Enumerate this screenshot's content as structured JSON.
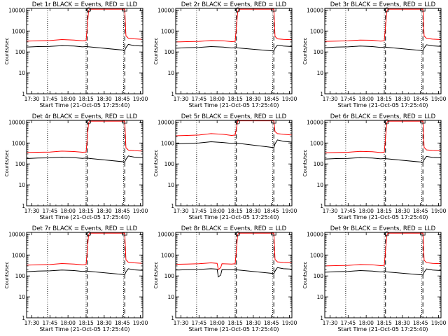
{
  "colors": {
    "events": "#000000",
    "lld": "#ff0000",
    "axes": "#000000"
  },
  "chart_data": [
    {
      "type": "line",
      "title": "Det 1r BLACK = Events, RED = LLD",
      "xlabel": "Start Time (21-Oct-05 17:25:40)",
      "ylabel": "Counts/sec",
      "ylog": true,
      "ylim": [
        1,
        12000
      ],
      "xlim": [
        "17:25:40",
        "19:02:00"
      ],
      "xticks": [
        "17:30",
        "17:45",
        "18:00",
        "18:15",
        "18:30",
        "18:45",
        "19:00"
      ],
      "yticks": [
        "1",
        "10",
        "100",
        "1000",
        "10000"
      ],
      "dotted_lines": [
        "17:43",
        "18:15",
        "18:46"
      ],
      "dashed_lines": [
        "18:16",
        "18:47"
      ],
      "series": [
        {
          "color": "#ff0000",
          "x": [
            "17:25:40",
            "17:35",
            "17:45",
            "17:55",
            "18:05",
            "18:12",
            "18:15",
            "18:17",
            "18:18",
            "18:47",
            "18:48",
            "18:50",
            "18:55",
            "19:02"
          ],
          "y": [
            330,
            340,
            350,
            390,
            370,
            340,
            350,
            9000,
            11000,
            11000,
            600,
            450,
            420,
            400
          ]
        },
        {
          "color": "#000000",
          "x": [
            "17:25:40",
            "17:35",
            "17:45",
            "17:55",
            "18:05",
            "18:12",
            "18:15",
            "18:47",
            "18:48",
            "18:50",
            "18:55",
            "19:02"
          ],
          "y": [
            170,
            180,
            185,
            200,
            190,
            175,
            180,
            120,
            160,
            230,
            200,
            190
          ]
        }
      ]
    },
    {
      "type": "line",
      "title": "Det 2r BLACK = Events, RED = LLD",
      "xlabel": "Start Time (21-Oct-05 17:25:40)",
      "ylabel": "Counts/sec",
      "ylog": true,
      "ylim": [
        1,
        12000
      ],
      "xlim": [
        "17:25:40",
        "19:02:00"
      ],
      "xticks": [
        "17:30",
        "17:45",
        "18:00",
        "18:15",
        "18:30",
        "18:45",
        "19:00"
      ],
      "yticks": [
        "1",
        "10",
        "100",
        "1000",
        "10000"
      ],
      "dotted_lines": [
        "17:43",
        "18:15",
        "18:46"
      ],
      "dashed_lines": [
        "18:16",
        "18:47"
      ],
      "series": [
        {
          "color": "#ff0000",
          "x": [
            "17:25:40",
            "17:35",
            "17:45",
            "17:55",
            "18:05",
            "18:12",
            "18:15",
            "18:17",
            "18:18",
            "18:47",
            "18:48",
            "18:50",
            "18:55",
            "19:02"
          ],
          "y": [
            300,
            310,
            320,
            350,
            340,
            310,
            320,
            8000,
            11000,
            11000,
            550,
            420,
            400,
            380
          ]
        },
        {
          "color": "#000000",
          "x": [
            "17:25:40",
            "17:35",
            "17:45",
            "17:55",
            "18:05",
            "18:12",
            "18:15",
            "18:47",
            "18:48",
            "18:50",
            "18:55",
            "19:02"
          ],
          "y": [
            150,
            160,
            165,
            180,
            170,
            155,
            160,
            110,
            150,
            210,
            190,
            180
          ]
        }
      ]
    },
    {
      "type": "line",
      "title": "Det 3r BLACK = Events, RED = LLD",
      "xlabel": "Start Time (21-Oct-05 17:25:40)",
      "ylabel": "Counts/sec",
      "ylog": true,
      "ylim": [
        1,
        12000
      ],
      "xlim": [
        "17:25:40",
        "19:02:00"
      ],
      "xticks": [
        "17:30",
        "17:45",
        "18:00",
        "18:15",
        "18:30",
        "18:45",
        "19:00"
      ],
      "yticks": [
        "1",
        "10",
        "100",
        "1000",
        "10000"
      ],
      "dotted_lines": [
        "17:43",
        "18:15",
        "18:46"
      ],
      "dashed_lines": [
        "18:16",
        "18:47"
      ],
      "series": [
        {
          "color": "#ff0000",
          "x": [
            "17:25:40",
            "17:35",
            "17:45",
            "17:55",
            "18:05",
            "18:12",
            "18:15",
            "18:17",
            "18:18",
            "18:47",
            "18:48",
            "18:50",
            "18:55",
            "19:02"
          ],
          "y": [
            320,
            330,
            340,
            370,
            360,
            330,
            340,
            8500,
            11000,
            11000,
            580,
            440,
            410,
            390
          ]
        },
        {
          "color": "#000000",
          "x": [
            "17:25:40",
            "17:35",
            "17:45",
            "17:55",
            "18:05",
            "18:12",
            "18:15",
            "18:47",
            "18:48",
            "18:50",
            "18:55",
            "19:02"
          ],
          "y": [
            160,
            170,
            175,
            190,
            180,
            165,
            170,
            115,
            155,
            220,
            195,
            185
          ]
        }
      ]
    },
    {
      "type": "line",
      "title": "Det 4r BLACK = Events, RED = LLD",
      "xlabel": "Start Time (21-Oct-05 17:25:40)",
      "ylabel": "Counts/sec",
      "ylog": true,
      "ylim": [
        1,
        12000
      ],
      "xlim": [
        "17:25:40",
        "19:02:00"
      ],
      "xticks": [
        "17:30",
        "17:45",
        "18:00",
        "18:15",
        "18:30",
        "18:45",
        "19:00"
      ],
      "yticks": [
        "1",
        "10",
        "100",
        "1000",
        "10000"
      ],
      "dotted_lines": [
        "17:43",
        "18:15",
        "18:46"
      ],
      "dashed_lines": [
        "18:16",
        "18:47"
      ],
      "series": [
        {
          "color": "#ff0000",
          "x": [
            "17:25:40",
            "17:35",
            "17:45",
            "17:55",
            "18:05",
            "18:12",
            "18:15",
            "18:17",
            "18:18",
            "18:47",
            "18:48",
            "18:50",
            "18:55",
            "19:02"
          ],
          "y": [
            350,
            360,
            370,
            410,
            390,
            360,
            370,
            9000,
            11000,
            11000,
            600,
            460,
            430,
            410
          ]
        },
        {
          "color": "#000000",
          "x": [
            "17:25:40",
            "17:35",
            "17:45",
            "17:55",
            "18:05",
            "18:12",
            "18:15",
            "18:47",
            "18:48",
            "18:50",
            "18:55",
            "19:02"
          ],
          "y": [
            180,
            190,
            195,
            210,
            200,
            185,
            190,
            125,
            165,
            240,
            210,
            200
          ]
        }
      ]
    },
    {
      "type": "line",
      "title": "Det 5r BLACK = Events, RED = LLD",
      "xlabel": "Start Time (21-Oct-05 17:25:40)",
      "ylabel": "Counts/sec",
      "ylog": true,
      "ylim": [
        1,
        12000
      ],
      "xlim": [
        "17:25:40",
        "19:02:00"
      ],
      "xticks": [
        "17:30",
        "17:45",
        "18:00",
        "18:15",
        "18:30",
        "18:45",
        "19:00"
      ],
      "yticks": [
        "1",
        "10",
        "100",
        "1000",
        "10000"
      ],
      "dotted_lines": [
        "17:43",
        "18:15",
        "18:46"
      ],
      "dashed_lines": [
        "18:16",
        "18:47"
      ],
      "series": [
        {
          "color": "#ff0000",
          "x": [
            "17:25:40",
            "17:35",
            "17:45",
            "17:55",
            "18:05",
            "18:12",
            "18:15",
            "18:17",
            "18:18",
            "18:47",
            "18:48",
            "18:50",
            "18:55",
            "19:02"
          ],
          "y": [
            2200,
            2300,
            2400,
            2800,
            2600,
            2300,
            2400,
            11000,
            11500,
            11500,
            3500,
            2800,
            2600,
            2400
          ]
        },
        {
          "color": "#000000",
          "x": [
            "17:25:40",
            "17:35",
            "17:45",
            "17:55",
            "18:05",
            "18:12",
            "18:15",
            "18:47",
            "18:48",
            "18:50",
            "18:55",
            "19:02"
          ],
          "y": [
            900,
            950,
            1000,
            1150,
            1050,
            950,
            1000,
            600,
            900,
            1400,
            1200,
            1100
          ]
        }
      ]
    },
    {
      "type": "line",
      "title": "Det 6r BLACK = Events, RED = LLD",
      "xlabel": "Start Time (21-Oct-05 17:25:40)",
      "ylabel": "Counts/sec",
      "ylog": true,
      "ylim": [
        1,
        12000
      ],
      "xlim": [
        "17:25:40",
        "19:02:00"
      ],
      "xticks": [
        "17:30",
        "17:45",
        "18:00",
        "18:15",
        "18:30",
        "18:45",
        "19:00"
      ],
      "yticks": [
        "1",
        "10",
        "100",
        "1000",
        "10000"
      ],
      "dotted_lines": [
        "17:43",
        "18:15",
        "18:46"
      ],
      "dashed_lines": [
        "18:16",
        "18:47"
      ],
      "series": [
        {
          "color": "#ff0000",
          "x": [
            "17:25:40",
            "17:35",
            "17:45",
            "17:55",
            "18:05",
            "18:12",
            "18:15",
            "18:17",
            "18:18",
            "18:47",
            "18:48",
            "18:50",
            "18:55",
            "19:02"
          ],
          "y": [
            340,
            350,
            360,
            400,
            380,
            350,
            360,
            9000,
            11000,
            11000,
            620,
            470,
            440,
            420
          ]
        },
        {
          "color": "#000000",
          "x": [
            "17:25:40",
            "17:35",
            "17:45",
            "17:55",
            "18:05",
            "18:12",
            "18:15",
            "18:47",
            "18:48",
            "18:50",
            "18:55",
            "19:02"
          ],
          "y": [
            170,
            180,
            185,
            200,
            190,
            175,
            180,
            120,
            160,
            230,
            205,
            195
          ]
        }
      ]
    },
    {
      "type": "line",
      "title": "Det 7r BLACK = Events, RED = LLD",
      "xlabel": "Start Time (21-Oct-05 17:25:40)",
      "ylabel": "Counts/sec",
      "ylog": true,
      "ylim": [
        1,
        12000
      ],
      "xlim": [
        "17:25:40",
        "19:02:00"
      ],
      "xticks": [
        "17:30",
        "17:45",
        "18:00",
        "18:15",
        "18:30",
        "18:45",
        "19:00"
      ],
      "yticks": [
        "1",
        "10",
        "100",
        "1000",
        "10000"
      ],
      "dotted_lines": [
        "17:43",
        "18:15",
        "18:46"
      ],
      "dashed_lines": [
        "18:16",
        "18:47"
      ],
      "series": [
        {
          "color": "#ff0000",
          "x": [
            "17:25:40",
            "17:35",
            "17:45",
            "17:55",
            "18:05",
            "18:12",
            "18:15",
            "18:17",
            "18:18",
            "18:47",
            "18:48",
            "18:50",
            "18:55",
            "19:02"
          ],
          "y": [
            330,
            340,
            350,
            390,
            370,
            340,
            350,
            9000,
            11000,
            11000,
            600,
            450,
            420,
            400
          ]
        },
        {
          "color": "#000000",
          "x": [
            "17:25:40",
            "17:35",
            "17:45",
            "17:55",
            "18:05",
            "18:12",
            "18:15",
            "18:47",
            "18:48",
            "18:50",
            "18:55",
            "19:02"
          ],
          "y": [
            160,
            170,
            175,
            190,
            180,
            165,
            170,
            115,
            155,
            220,
            195,
            185
          ]
        }
      ]
    },
    {
      "type": "line",
      "title": "Det 8r BLACK = Events, RED = LLD",
      "xlabel": "Start Time (21-Oct-05 17:25:40)",
      "ylabel": "Counts/sec",
      "ylog": true,
      "ylim": [
        1,
        12000
      ],
      "xlim": [
        "17:25:40",
        "19:02:00"
      ],
      "xticks": [
        "17:30",
        "17:45",
        "18:00",
        "18:15",
        "18:30",
        "18:45",
        "19:00"
      ],
      "yticks": [
        "1",
        "10",
        "100",
        "1000",
        "10000"
      ],
      "dotted_lines": [
        "17:43",
        "18:15",
        "18:46"
      ],
      "dashed_lines": [
        "18:16",
        "18:47"
      ],
      "series": [
        {
          "color": "#ff0000",
          "x": [
            "17:25:40",
            "17:35",
            "17:45",
            "17:55",
            "18:00",
            "18:01",
            "18:03",
            "18:04",
            "18:12",
            "18:15",
            "18:17",
            "18:18",
            "18:47",
            "18:48",
            "18:50",
            "18:55",
            "19:02"
          ],
          "y": [
            360,
            370,
            380,
            420,
            400,
            200,
            250,
            380,
            370,
            380,
            9000,
            11000,
            11000,
            620,
            470,
            440,
            420
          ]
        },
        {
          "color": "#000000",
          "x": [
            "17:25:40",
            "17:35",
            "17:45",
            "17:55",
            "18:00",
            "18:01",
            "18:03",
            "18:04",
            "18:12",
            "18:15",
            "18:47",
            "18:48",
            "18:50",
            "18:55",
            "19:02"
          ],
          "y": [
            190,
            200,
            205,
            220,
            210,
            90,
            110,
            200,
            195,
            200,
            130,
            170,
            250,
            220,
            210
          ]
        }
      ]
    },
    {
      "type": "line",
      "title": "Det 9r BLACK = Events, RED = LLD",
      "xlabel": "Start Time (21-Oct-05 17:25:40)",
      "ylabel": "Counts/sec",
      "ylog": true,
      "ylim": [
        1,
        12000
      ],
      "xlim": [
        "17:25:40",
        "19:02:00"
      ],
      "xticks": [
        "17:30",
        "17:45",
        "18:00",
        "18:15",
        "18:30",
        "18:45",
        "19:00"
      ],
      "yticks": [
        "1",
        "10",
        "100",
        "1000",
        "10000"
      ],
      "dotted_lines": [
        "17:43",
        "18:15",
        "18:46"
      ],
      "dashed_lines": [
        "18:16",
        "18:47"
      ],
      "series": [
        {
          "color": "#ff0000",
          "x": [
            "17:25:40",
            "17:35",
            "17:45",
            "17:55",
            "18:05",
            "18:12",
            "18:15",
            "18:17",
            "18:18",
            "18:47",
            "18:48",
            "18:50",
            "18:55",
            "19:02"
          ],
          "y": [
            300,
            310,
            320,
            350,
            340,
            310,
            320,
            8500,
            11000,
            11000,
            560,
            430,
            400,
            380
          ]
        },
        {
          "color": "#000000",
          "x": [
            "17:25:40",
            "17:35",
            "17:45",
            "17:55",
            "18:05",
            "18:12",
            "18:15",
            "18:47",
            "18:48",
            "18:50",
            "18:55",
            "19:02"
          ],
          "y": [
            150,
            160,
            165,
            180,
            170,
            155,
            160,
            110,
            150,
            215,
            190,
            180
          ]
        }
      ]
    }
  ]
}
